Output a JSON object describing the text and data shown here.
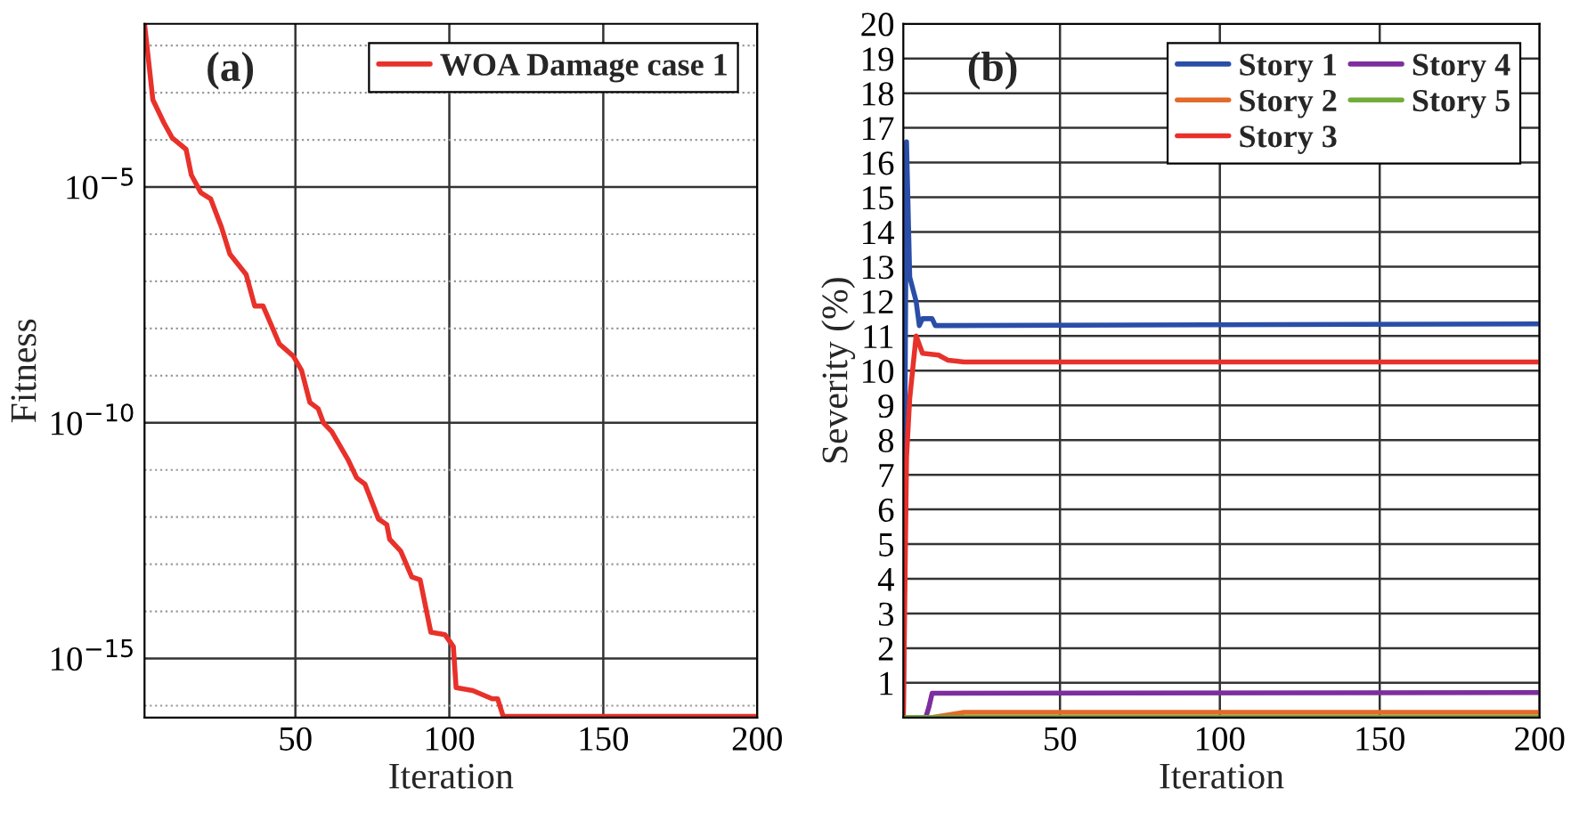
{
  "chart_data": [
    {
      "type": "line",
      "xlabel": "Iteration",
      "ylabel": "Fitness",
      "annotations": [
        "(a)"
      ],
      "log": "y",
      "grid": true,
      "legend": "top right",
      "xlim": [
        1,
        200
      ],
      "xticks": [
        50,
        100,
        150,
        200
      ],
      "ylim": [
        5.6e-17,
        0.029
      ],
      "yticks": [
        {
          "value": 0.01,
          "label": null
        },
        {
          "value": 0.001,
          "label": null
        },
        {
          "value": 0.0001,
          "label": null
        },
        {
          "value": 1e-05,
          "label": "10$^{−5}$"
        },
        {
          "value": 1e-06,
          "label": null
        },
        {
          "value": 1e-07,
          "label": null
        },
        {
          "value": 1e-08,
          "label": null
        },
        {
          "value": 1e-09,
          "label": null
        },
        {
          "value": 1e-10,
          "label": "10$^{−10}$"
        },
        {
          "value": 1e-11,
          "label": null
        },
        {
          "value": 1e-12,
          "label": null
        },
        {
          "value": 1e-13,
          "label": null
        },
        {
          "value": 1e-14,
          "label": null
        },
        {
          "value": 1e-15,
          "label": "10$^{−15}$"
        },
        {
          "value": 1e-16,
          "label": null
        }
      ],
      "series": [
        {
          "name": "WOA Damage case 1",
          "color": "#e8312a",
          "x": [
            1,
            3.7,
            7.3,
            10,
            14.5,
            16.2,
            19.3,
            22.5,
            26,
            28.7,
            34,
            36.8,
            39.5,
            44.8,
            49.3,
            52,
            54.7,
            57.4,
            59.1,
            61.8,
            67.2,
            69.9,
            72.6,
            77,
            79.7,
            80.6,
            84.2,
            87.8,
            90.5,
            94,
            98.6,
            101.3,
            102.2,
            107.6,
            113.9,
            115.7,
            117.5,
            200
          ],
          "values": [
            0.029,
            0.00071,
            0.00023,
            0.00011,
            6.3e-05,
            1.8e-05,
            7.6e-06,
            5.6e-06,
            1.4e-06,
            3.8e-07,
            1.4e-07,
            3e-08,
            3e-08,
            4.7e-09,
            2.6e-09,
            1.3e-09,
            2.7e-10,
            2e-10,
            1e-10,
            6.5e-11,
            1.6e-11,
            6.8e-12,
            5e-12,
            9.1e-13,
            6.9e-13,
            3.4e-13,
            1.9e-13,
            5.4e-14,
            4.7e-14,
            3.6e-15,
            3.2e-15,
            1.8e-15,
            2.4e-16,
            2.1e-16,
            1.4e-16,
            1.4e-16,
            5.9e-17,
            5.9e-17
          ]
        }
      ]
    },
    {
      "type": "line",
      "xlabel": "Iteration",
      "ylabel": "Severity (%)",
      "annotations": [
        "(b)"
      ],
      "grid": true,
      "legend": "top right",
      "xlim": [
        1,
        200
      ],
      "xticks": [
        50,
        100,
        150,
        200
      ],
      "ylim": [
        0,
        20
      ],
      "yticks": [
        1,
        2,
        3,
        4,
        5,
        6,
        7,
        8,
        9,
        10,
        11,
        12,
        13,
        14,
        15,
        16,
        17,
        18,
        19,
        20
      ],
      "series": [
        {
          "name": "Story 1",
          "color": "#2a4ea8",
          "x": [
            1,
            2,
            3,
            5,
            6,
            7,
            10,
            11,
            15,
            200
          ],
          "values": [
            0,
            16.6,
            12.7,
            12.0,
            11.3,
            11.5,
            11.5,
            11.3,
            11.3,
            11.35
          ]
        },
        {
          "name": "Story 2",
          "color": "#e36a2b",
          "x": [
            1,
            10,
            20,
            200
          ],
          "values": [
            0,
            0,
            0.15,
            0.15
          ]
        },
        {
          "name": "Story 3",
          "color": "#e8312a",
          "x": [
            1,
            2,
            3,
            5,
            7,
            12,
            15,
            20,
            200
          ],
          "values": [
            0,
            7.5,
            9.2,
            11.0,
            10.5,
            10.45,
            10.3,
            10.25,
            10.25
          ]
        },
        {
          "name": "Story 4",
          "color": "#7d2e9e",
          "x": [
            8,
            9,
            10,
            13,
            200
          ],
          "values": [
            0,
            0.3,
            0.7,
            0.7,
            0.72
          ]
        },
        {
          "name": "Story 5",
          "color": "#72ac3a",
          "x": [
            1,
            200
          ],
          "values": [
            0,
            0
          ]
        }
      ]
    }
  ]
}
